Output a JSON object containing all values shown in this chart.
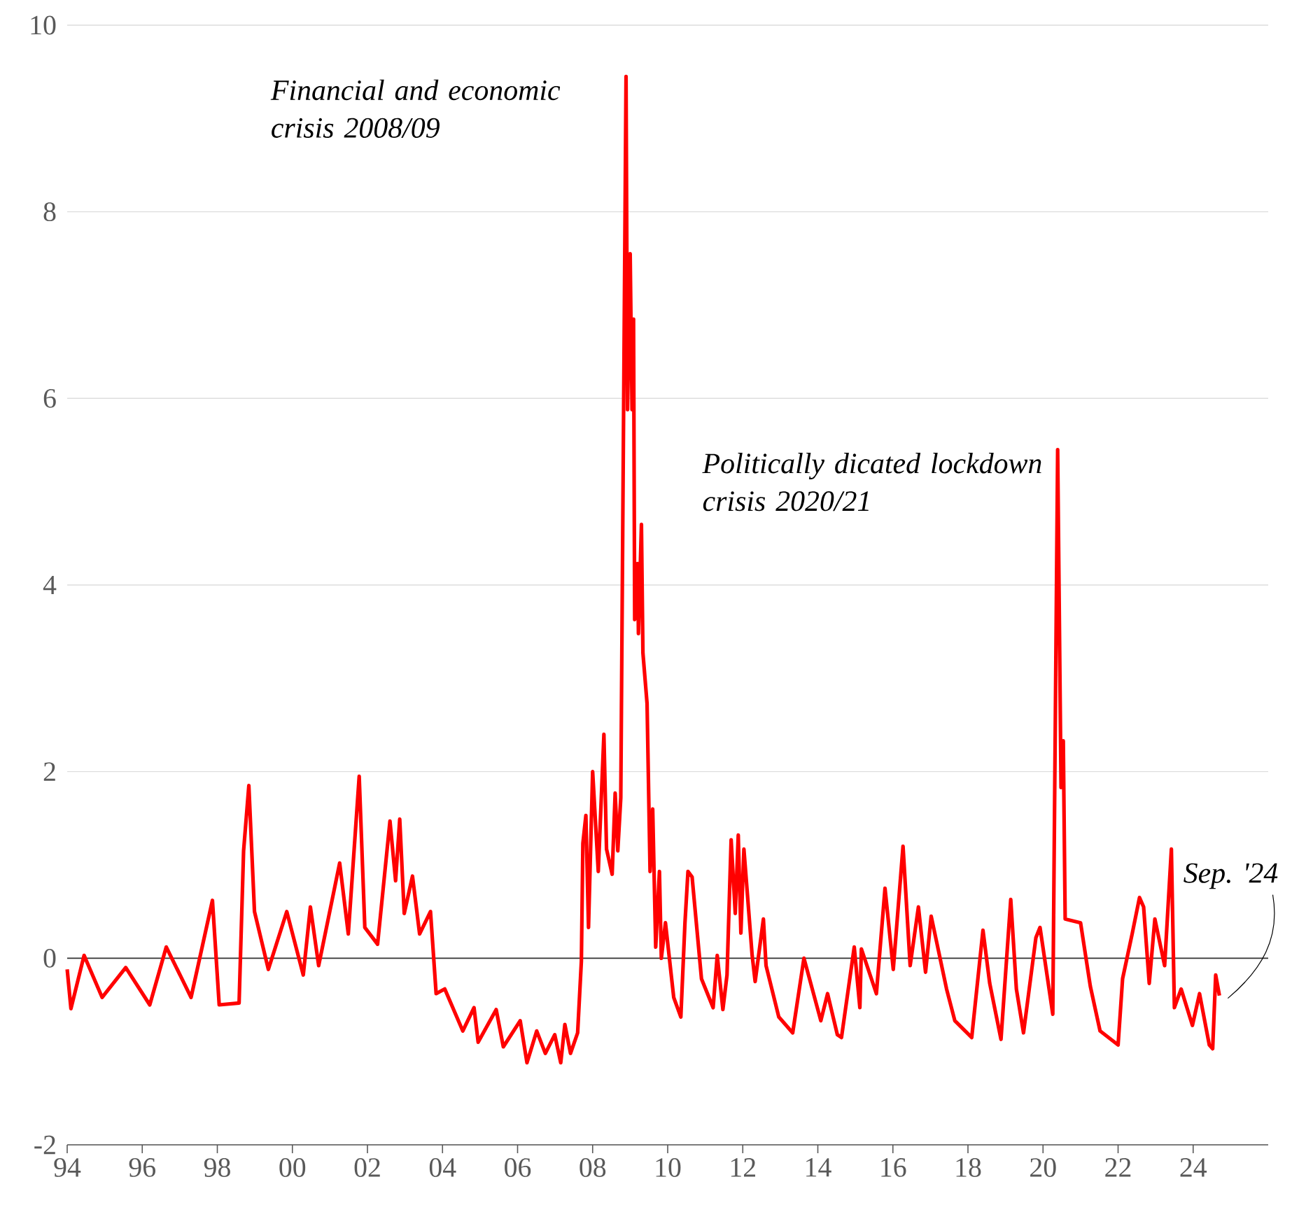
{
  "chart_data": {
    "type": "line",
    "color": "#ff0000",
    "x": [
      1994.0,
      1994.1,
      1994.45,
      1994.93,
      1995.56,
      1996.2,
      1996.64,
      1997.3,
      1997.87,
      1998.05,
      1998.58,
      1998.7,
      1998.84,
      1998.99,
      1999.36,
      1999.85,
      2000.29,
      2000.48,
      2000.7,
      2001.26,
      2001.49,
      2001.78,
      2001.93,
      2002.27,
      2002.6,
      2002.75,
      2002.86,
      2002.98,
      2003.2,
      2003.39,
      2003.68,
      2003.83,
      2004.06,
      2004.54,
      2004.84,
      2004.95,
      2005.43,
      2005.62,
      2006.07,
      2006.25,
      2006.51,
      2006.74,
      2006.99,
      2007.15,
      2007.26,
      2007.41,
      2007.6,
      2007.7,
      2007.74,
      2007.82,
      2007.89,
      2008.0,
      2008.15,
      2008.3,
      2008.37,
      2008.52,
      2008.6,
      2008.67,
      2008.75,
      2008.89,
      2008.93,
      2009.0,
      2009.05,
      2009.09,
      2009.12,
      2009.2,
      2009.22,
      2009.3,
      2009.34,
      2009.45,
      2009.53,
      2009.6,
      2009.68,
      2009.78,
      2009.83,
      2009.94,
      2010.16,
      2010.35,
      2010.46,
      2010.54,
      2010.65,
      2010.9,
      2011.21,
      2011.32,
      2011.47,
      2011.58,
      2011.69,
      2011.8,
      2011.88,
      2011.95,
      2012.03,
      2012.25,
      2012.33,
      2012.55,
      2012.62,
      2012.96,
      2013.33,
      2013.63,
      2014.08,
      2014.26,
      2014.52,
      2014.63,
      2014.97,
      2015.12,
      2015.16,
      2015.56,
      2015.79,
      2016.01,
      2016.27,
      2016.46,
      2016.68,
      2016.87,
      2017.02,
      2017.43,
      2017.65,
      2018.1,
      2018.4,
      2018.58,
      2018.88,
      2019.14,
      2019.29,
      2019.48,
      2019.81,
      2019.92,
      2020.26,
      2020.39,
      2020.48,
      2020.54,
      2020.59,
      2021.0,
      2021.26,
      2021.52,
      2022.0,
      2022.12,
      2022.38,
      2022.57,
      2022.68,
      2022.83,
      2022.98,
      2023.24,
      2023.42,
      2023.5,
      2023.68,
      2023.98,
      2024.17,
      2024.43,
      2024.52,
      2024.6,
      2024.7
    ],
    "values": [
      -0.12,
      -0.54,
      0.03,
      -0.42,
      -0.1,
      -0.5,
      0.12,
      -0.42,
      0.62,
      -0.5,
      -0.48,
      1.15,
      1.85,
      0.5,
      -0.12,
      0.5,
      -0.18,
      0.55,
      -0.08,
      1.02,
      0.26,
      1.95,
      0.33,
      0.15,
      1.47,
      0.83,
      1.49,
      0.48,
      0.88,
      0.26,
      0.5,
      -0.38,
      -0.33,
      -0.78,
      -0.53,
      -0.9,
      -0.55,
      -0.95,
      -0.67,
      -1.12,
      -0.78,
      -1.02,
      -0.82,
      -1.12,
      -0.71,
      -1.02,
      -0.8,
      -0.03,
      1.23,
      1.53,
      0.33,
      2.0,
      0.93,
      2.4,
      1.17,
      0.9,
      1.77,
      1.15,
      1.72,
      9.45,
      5.88,
      7.55,
      5.88,
      6.85,
      3.63,
      4.23,
      3.48,
      4.65,
      3.27,
      2.73,
      0.93,
      1.6,
      0.12,
      0.93,
      0.0,
      0.38,
      -0.42,
      -0.63,
      0.38,
      0.93,
      0.87,
      -0.22,
      -0.53,
      0.03,
      -0.55,
      -0.18,
      1.27,
      0.48,
      1.32,
      0.27,
      1.17,
      0.03,
      -0.25,
      0.42,
      -0.08,
      -0.63,
      -0.8,
      0.0,
      -0.67,
      -0.38,
      -0.82,
      -0.85,
      0.12,
      -0.53,
      0.1,
      -0.38,
      0.75,
      -0.12,
      1.2,
      -0.08,
      0.55,
      -0.15,
      0.45,
      -0.33,
      -0.67,
      -0.85,
      0.3,
      -0.27,
      -0.87,
      0.63,
      -0.33,
      -0.8,
      0.22,
      0.33,
      -0.6,
      5.45,
      1.83,
      2.33,
      0.42,
      0.38,
      -0.3,
      -0.78,
      -0.93,
      -0.22,
      0.27,
      0.65,
      0.55,
      -0.27,
      0.42,
      -0.08,
      1.17,
      -0.53,
      -0.33,
      -0.72,
      -0.38,
      -0.93,
      -0.97,
      -0.18,
      -0.4
    ],
    "xlim": [
      1994,
      2026
    ],
    "xticks": [
      {
        "value": 1994,
        "label": "94"
      },
      {
        "value": 1996,
        "label": "96"
      },
      {
        "value": 1998,
        "label": "98"
      },
      {
        "value": 2000,
        "label": "00"
      },
      {
        "value": 2002,
        "label": "02"
      },
      {
        "value": 2004,
        "label": "04"
      },
      {
        "value": 2006,
        "label": "06"
      },
      {
        "value": 2008,
        "label": "08"
      },
      {
        "value": 2010,
        "label": "10"
      },
      {
        "value": 2012,
        "label": "12"
      },
      {
        "value": 2014,
        "label": "14"
      },
      {
        "value": 2016,
        "label": "16"
      },
      {
        "value": 2018,
        "label": "18"
      },
      {
        "value": 2020,
        "label": "20"
      },
      {
        "value": 2022,
        "label": "22"
      },
      {
        "value": 2024,
        "label": "24"
      }
    ],
    "ylim": [
      -2,
      10
    ],
    "yticks": [
      -2,
      0,
      2,
      4,
      6,
      8,
      10
    ],
    "grid": "y",
    "ref_lines": [
      {
        "axis": "y",
        "value": 0,
        "color": "#333333"
      }
    ],
    "annotations": [
      {
        "text": "Financial and economic crisis 2008/09",
        "x": 2008.89,
        "y": 9.45
      },
      {
        "text": "Politically dicated lockdown crisis 2020/21",
        "x": 2020.39,
        "y": 5.45
      },
      {
        "text": "Sep. '24",
        "x": 2024.7,
        "y": -0.4
      }
    ]
  }
}
